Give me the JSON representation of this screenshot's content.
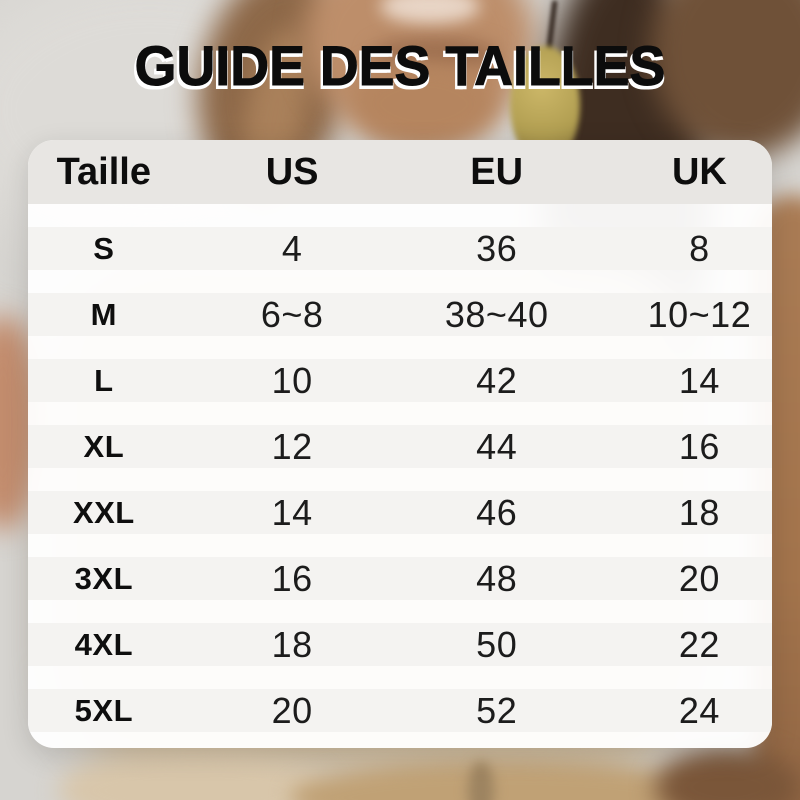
{
  "title": "GUIDE DES TAILLES",
  "chart_data": {
    "type": "table",
    "title": "GUIDE DES TAILLES",
    "columns": [
      "Taille",
      "US",
      "EU",
      "UK"
    ],
    "rows": [
      [
        "S",
        "4",
        "36",
        "8"
      ],
      [
        "M",
        "6~8",
        "38~40",
        "10~12"
      ],
      [
        "L",
        "10",
        "42",
        "14"
      ],
      [
        "XL",
        "12",
        "44",
        "16"
      ],
      [
        "XXL",
        "14",
        "46",
        "18"
      ],
      [
        "3XL",
        "16",
        "48",
        "20"
      ],
      [
        "4XL",
        "18",
        "50",
        "22"
      ],
      [
        "5XL",
        "20",
        "52",
        "24"
      ]
    ],
    "layout_hints": "header row gray, data rows light gray separated by white gaps, rounded card over photo"
  },
  "colors": {
    "title_text": "#0c0c0c",
    "title_shadow": "#ffffff",
    "card_bg": "#ffffff",
    "header_bg": "#e8e6e3",
    "row_bg": "#f4f3f1",
    "text": "#1c1c1c",
    "earring_gold": "#b19e51",
    "garment_beige": "#cfbc9e"
  }
}
